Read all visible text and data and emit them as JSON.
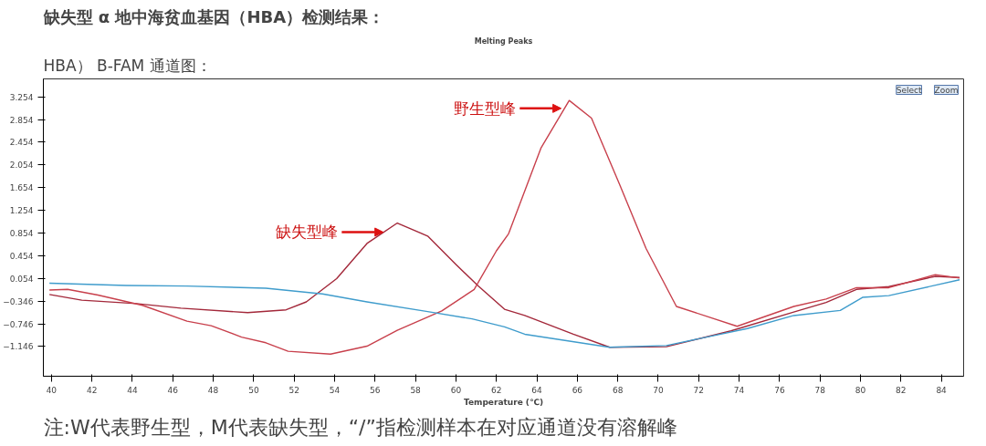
{
  "chart_data": {
    "type": "line",
    "title": "缺失型 α 地中海贫血基因（HBA）检测结果：",
    "subtitle": "HBA） B-FAM 通道图：",
    "xlabel": "Temperature (℃)",
    "annotations": [
      "Melting Peaks",
      "注:W代表野生型，M代表缺失型，“/”指检测样本在对应通道没有溶解峰",
      {
        "text": "野生型峰",
        "x": 65.2,
        "y": 3.05
      },
      {
        "text": "缺失型峰",
        "x": 56.4,
        "y": 0.87
      },
      "Select",
      "Zoom"
    ],
    "series": [
      {
        "color": "#a3283a",
        "x": [
          39.9,
          41.5,
          44.2,
          46.4,
          49.7,
          51.6,
          52.6,
          54.1,
          55.6,
          57.1,
          58.6,
          60.0,
          61.1,
          62.4,
          63.4,
          65.8,
          67.6,
          70.4,
          73.6,
          76.7,
          78.3,
          79.8,
          81.4,
          83.7,
          84.9
        ],
        "values": [
          -0.23,
          -0.33,
          -0.39,
          -0.47,
          -0.55,
          -0.5,
          -0.36,
          0.05,
          0.67,
          1.03,
          0.8,
          0.3,
          -0.08,
          -0.49,
          -0.6,
          -0.93,
          -1.16,
          -1.15,
          -0.87,
          -0.54,
          -0.37,
          -0.14,
          -0.09,
          0.09,
          0.07
        ]
      },
      {
        "color": "#c8404c",
        "x": [
          39.9,
          40.8,
          42.3,
          44.5,
          46.7,
          47.9,
          49.4,
          50.6,
          51.7,
          53.8,
          55.6,
          57.1,
          59.3,
          60.9,
          62.0,
          62.6,
          64.2,
          65.6,
          66.7,
          68.1,
          69.4,
          70.9,
          73.9,
          76.7,
          78.3,
          79.8,
          81.4,
          83.7,
          84.9
        ],
        "values": [
          -0.15,
          -0.14,
          -0.24,
          -0.42,
          -0.7,
          -0.78,
          -0.98,
          -1.08,
          -1.23,
          -1.28,
          -1.14,
          -0.86,
          -0.52,
          -0.14,
          0.54,
          0.84,
          2.35,
          3.19,
          2.88,
          1.7,
          0.58,
          -0.44,
          -0.79,
          -0.44,
          -0.31,
          -0.11,
          -0.11,
          0.12,
          0.06
        ]
      },
      {
        "color": "#3f9ccc",
        "x": [
          39.9,
          43.7,
          46.7,
          50.6,
          53.4,
          55.6,
          58.6,
          60.8,
          62.4,
          63.4,
          67.6,
          70.4,
          74.4,
          76.7,
          79.0,
          80.1,
          81.4,
          84.9
        ],
        "values": [
          -0.03,
          -0.07,
          -0.08,
          -0.12,
          -0.22,
          -0.36,
          -0.53,
          -0.66,
          -0.8,
          -0.93,
          -1.16,
          -1.13,
          -0.83,
          -0.6,
          -0.51,
          -0.28,
          -0.25,
          0.03
        ]
      }
    ],
    "xlim": [
      39.6,
      85.1
    ],
    "ylim": [
      -1.67,
      3.57
    ],
    "xticks": [
      40,
      42,
      44,
      46,
      48,
      50,
      52,
      54,
      56,
      58,
      60,
      62,
      64,
      66,
      68,
      70,
      72,
      74,
      76,
      78,
      80,
      82,
      84
    ],
    "yticks": [
      3.254,
      2.854,
      2.454,
      2.054,
      1.654,
      1.254,
      0.854,
      0.454,
      0.054,
      -0.346,
      -0.746,
      -1.146
    ],
    "grid": false,
    "line_style": "solid",
    "marker": "none"
  }
}
